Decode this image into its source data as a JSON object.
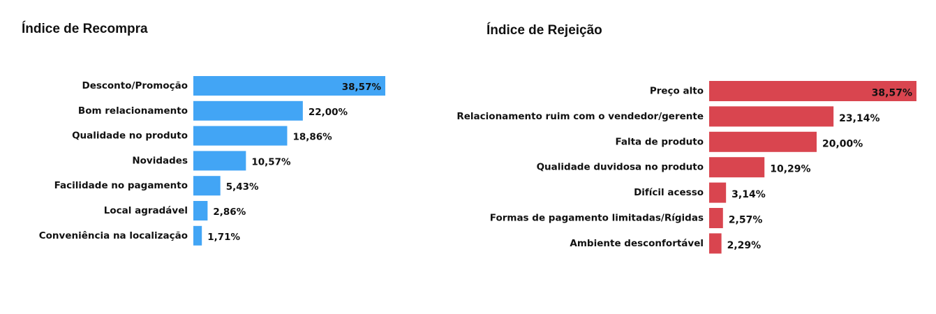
{
  "chart_data": [
    {
      "type": "bar",
      "orientation": "horizontal",
      "title": "Índice de Recompra",
      "categories": [
        "Desconto/Promoção",
        "Bom relacionamento",
        "Qualidade no produto",
        "Novidades",
        "Facilidade no pagamento",
        "Local agradável",
        "Conveniência na localização"
      ],
      "values": [
        38.57,
        22.0,
        18.86,
        10.57,
        5.43,
        2.86,
        1.71
      ],
      "value_labels": [
        "38,57%",
        "22,00%",
        "18,86%",
        "10,57%",
        "5,43%",
        "2,86%",
        "1,71%"
      ],
      "xlim": [
        0,
        38.57
      ],
      "grid": false,
      "color": "#42A5F5"
    },
    {
      "type": "bar",
      "orientation": "horizontal",
      "title": "Índice de Rejeição",
      "categories": [
        "Preço alto",
        "Relacionamento ruim com o vendedor/gerente",
        "Falta de produto",
        "Qualidade duvidosa no produto",
        "Difícil acesso",
        "Formas de pagamento limitadas/Rígidas",
        "Ambiente desconfortável"
      ],
      "values": [
        38.57,
        23.14,
        20.0,
        10.29,
        3.14,
        2.57,
        2.29
      ],
      "value_labels": [
        "38,57%",
        "23,14%",
        "20,00%",
        "10,29%",
        "3,14%",
        "2,57%",
        "2,29%"
      ],
      "xlim": [
        0,
        38.57
      ],
      "grid": false,
      "color": "#D9454F"
    }
  ]
}
